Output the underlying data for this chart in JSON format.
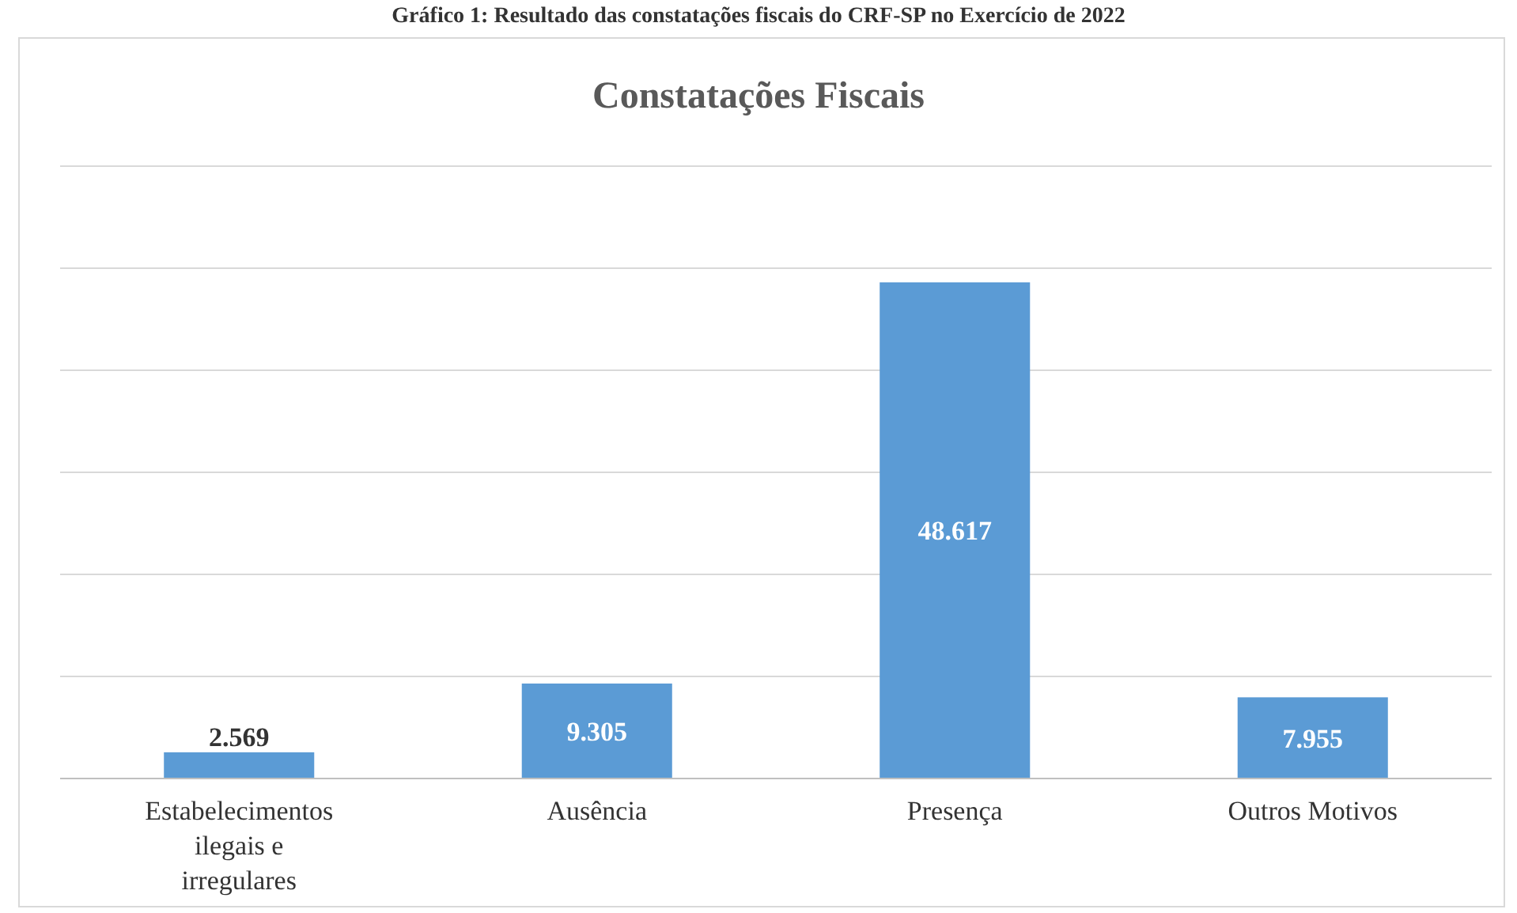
{
  "chart_data": {
    "type": "bar",
    "title": "Constatações Fiscais",
    "annotations": [
      "Gráfico 1: Resultado das constatações fiscais do CRF-SP no Exercício de 2022"
    ],
    "categories": [
      "Estabelecimentos ilegais e irregulares",
      "Ausência",
      "Presença",
      "Outros Motivos"
    ],
    "values": [
      2569,
      9305,
      48617,
      7955
    ],
    "value_labels": [
      "2.569",
      "9.305",
      "48.617",
      "7.955"
    ],
    "color": "#5b9bd5",
    "ylim": [
      0,
      60000
    ],
    "yticks": [
      {
        "value": 0,
        "label": null
      },
      {
        "value": 10000,
        "label": null
      },
      {
        "value": 20000,
        "label": null
      },
      {
        "value": 30000,
        "label": null
      },
      {
        "value": 40000,
        "label": null
      },
      {
        "value": 50000,
        "label": null
      },
      {
        "value": 60000,
        "label": null
      }
    ],
    "grid": "y"
  }
}
